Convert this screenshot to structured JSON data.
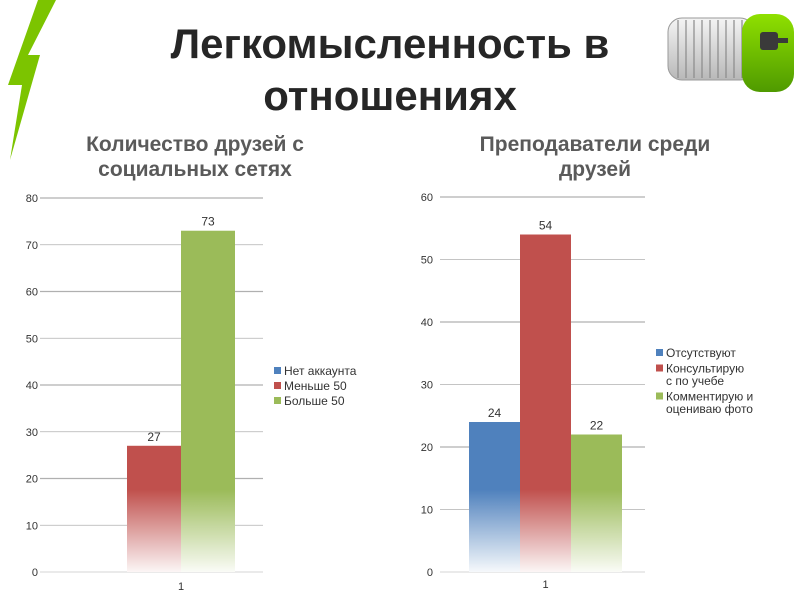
{
  "title_line1": "Легкомысленность в",
  "title_line2": "отношениях",
  "colors": {
    "blue": "#4f81bd",
    "red": "#c0504d",
    "green": "#9bbb59",
    "accent": "#7cc400"
  },
  "decor": {
    "logo_icon": "lightning-bolt-icon",
    "image_icon": "server-rack-key-icon"
  },
  "chart_data": [
    {
      "type": "bar",
      "title": "Количество друзей с социальных сетях",
      "title_lines": [
        "Количество друзей с",
        "социальных сетях"
      ],
      "categories": [
        "1"
      ],
      "series": [
        {
          "name": "Нет аккаунта",
          "values": [
            0
          ]
        },
        {
          "name": "Меньше 50",
          "values": [
            27
          ]
        },
        {
          "name": "Больше 50",
          "values": [
            73
          ]
        }
      ],
      "data_labels": [
        "27",
        "73"
      ],
      "ylim": [
        0,
        80
      ],
      "yticks": [
        0,
        10,
        20,
        30,
        40,
        50,
        60,
        70,
        80
      ],
      "grid": true,
      "legend": "right"
    },
    {
      "type": "bar",
      "title": "Преподаватели среди друзей",
      "title_lines": [
        "Преподаватели среди",
        "друзей"
      ],
      "categories": [
        "1"
      ],
      "series": [
        {
          "name": "Отсутствуют",
          "values": [
            24
          ]
        },
        {
          "name": "Консультирую с по учебе",
          "values": [
            54
          ]
        },
        {
          "name": "Комментирую и оцениваю фото",
          "values": [
            22
          ]
        }
      ],
      "legend_lines": [
        [
          "Отсутствуют"
        ],
        [
          "Консультирую",
          "с по учебе"
        ],
        [
          "Комментирую и",
          "оцениваю фото"
        ]
      ],
      "data_labels": [
        "24",
        "54",
        "22"
      ],
      "ylim": [
        0,
        60
      ],
      "yticks": [
        0,
        10,
        20,
        30,
        40,
        50,
        60
      ],
      "grid": true,
      "legend": "right"
    }
  ]
}
